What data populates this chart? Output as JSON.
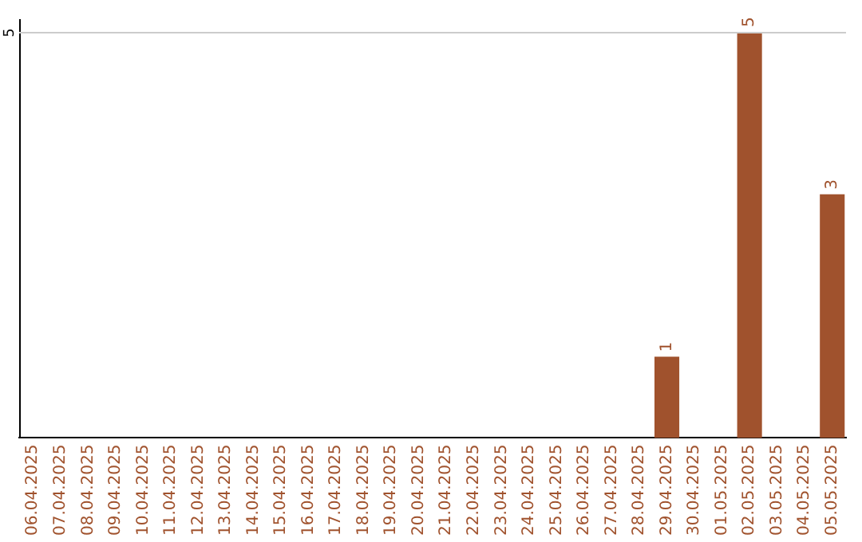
{
  "chart_data": {
    "type": "bar",
    "categories": [
      "06.04.2025",
      "07.04.2025",
      "08.04.2025",
      "09.04.2025",
      "10.04.2025",
      "11.04.2025",
      "12.04.2025",
      "13.04.2025",
      "14.04.2025",
      "15.04.2025",
      "16.04.2025",
      "17.04.2025",
      "18.04.2025",
      "19.04.2025",
      "20.04.2025",
      "21.04.2025",
      "22.04.2025",
      "23.04.2025",
      "24.04.2025",
      "25.04.2025",
      "26.04.2025",
      "27.04.2025",
      "28.04.2025",
      "29.04.2025",
      "30.04.2025",
      "01.05.2025",
      "02.05.2025",
      "03.05.2025",
      "04.05.2025",
      "05.05.2025"
    ],
    "values": [
      null,
      null,
      null,
      null,
      null,
      null,
      null,
      null,
      null,
      null,
      null,
      null,
      null,
      null,
      null,
      null,
      null,
      null,
      null,
      null,
      null,
      null,
      null,
      1,
      null,
      null,
      5,
      null,
      null,
      3
    ],
    "data_labels": true,
    "ylim": [
      0,
      5
    ],
    "color": "#a0522d",
    "ref_lines": [
      {
        "axis": "y",
        "value": 5,
        "label": "5",
        "color": "#cccccc"
      }
    ],
    "legend": false
  }
}
